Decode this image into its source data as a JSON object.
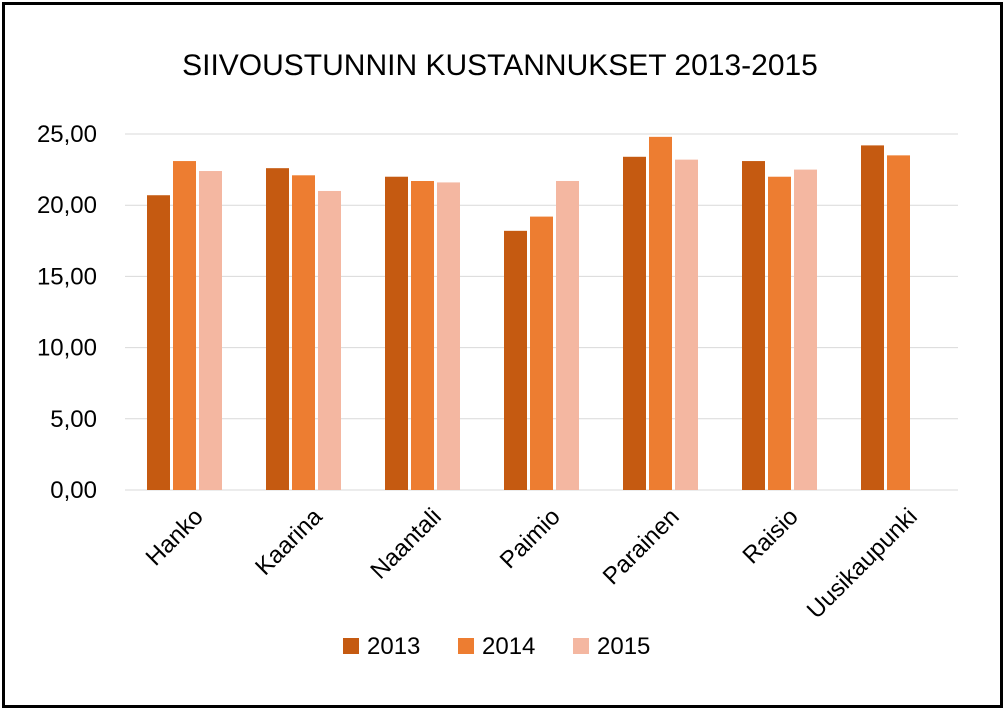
{
  "chart_data": {
    "type": "bar",
    "title": "SIIVOUSTUNNIN  KUSTANNUKSET 2013-2015",
    "categories": [
      "Hanko",
      "Kaarina",
      "Naantali",
      "Paimio",
      "Parainen",
      "Raisio",
      "Uusikaupunki"
    ],
    "series": [
      {
        "name": "2013",
        "color": "#c55a11",
        "values": [
          20.7,
          22.6,
          22.0,
          18.2,
          23.4,
          23.1,
          24.2
        ]
      },
      {
        "name": "2014",
        "color": "#ed7d31",
        "values": [
          23.1,
          22.1,
          21.7,
          19.2,
          24.8,
          22.0,
          23.5
        ]
      },
      {
        "name": "2015",
        "color": "#f4b7a1",
        "values": [
          22.4,
          21.0,
          21.6,
          21.7,
          23.2,
          22.5,
          null
        ]
      }
    ],
    "ylim": [
      0,
      25
    ],
    "yticks": [
      "0,00",
      "5,00",
      "10,00",
      "15,00",
      "20,00",
      "25,00"
    ],
    "grid": true,
    "legend_position": "bottom"
  }
}
